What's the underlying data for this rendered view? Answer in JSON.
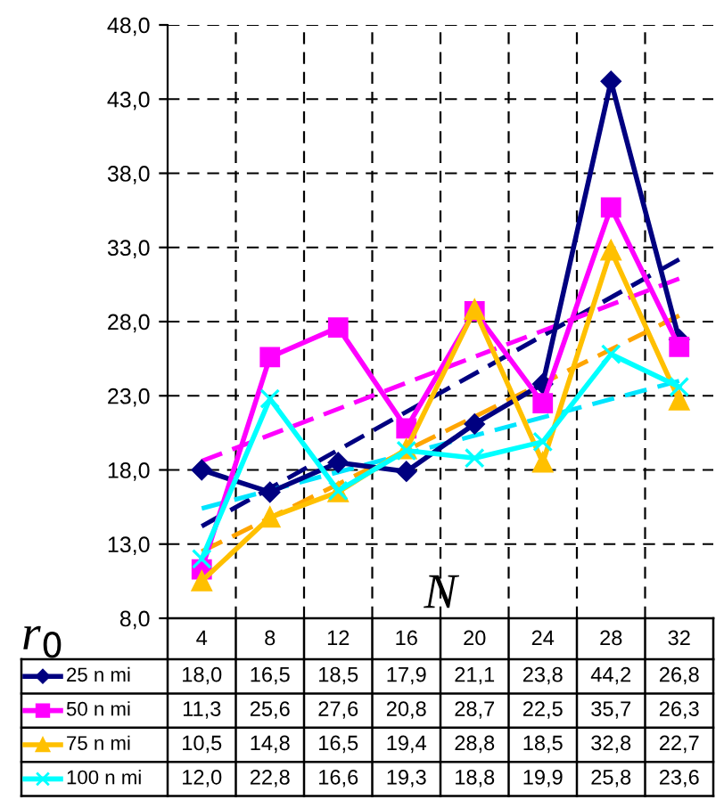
{
  "chart_data": {
    "type": "line",
    "xlabel": "N",
    "ylabel": "r$_{0}$",
    "categories": [
      "4",
      "8",
      "12",
      "16",
      "20",
      "24",
      "28",
      "32"
    ],
    "series": [
      {
        "name": "25 n mi",
        "color": "#000080",
        "marker": "diamond",
        "values": [
          18.0,
          16.5,
          18.5,
          17.9,
          21.1,
          23.8,
          44.2,
          26.8
        ],
        "value_labels": [
          "18,0",
          "16,5",
          "18,5",
          "17,9",
          "21,1",
          "23,8",
          "44,2",
          "26,8"
        ]
      },
      {
        "name": "50 n mi",
        "color": "#ff00ff",
        "marker": "square",
        "values": [
          11.3,
          25.6,
          27.6,
          20.8,
          28.7,
          22.5,
          35.7,
          26.3
        ],
        "value_labels": [
          "11,3",
          "25,6",
          "27,6",
          "20,8",
          "28,7",
          "22,5",
          "35,7",
          "26,3"
        ]
      },
      {
        "name": "75 n mi",
        "color": "#ffc000",
        "marker": "triangle",
        "values": [
          10.5,
          14.8,
          16.5,
          19.4,
          28.8,
          18.5,
          32.8,
          22.7
        ],
        "value_labels": [
          "10,5",
          "14,8",
          "16,5",
          "19,4",
          "28,8",
          "18,5",
          "32,8",
          "22,7"
        ]
      },
      {
        "name": "100 n mi",
        "color": "#00ffff",
        "marker": "cross",
        "values": [
          12.0,
          22.8,
          16.6,
          19.3,
          18.8,
          19.9,
          25.8,
          23.6
        ],
        "value_labels": [
          "12,0",
          "22,8",
          "16,6",
          "19,3",
          "18,8",
          "19,9",
          "25,8",
          "23,6"
        ]
      },
      {
        "type": "line",
        "color": "#000080",
        "line_style": "dashed",
        "x": [
          "4",
          "32"
        ],
        "values": [
          14.2,
          32.2
        ]
      },
      {
        "type": "line",
        "color": "#ff00ff",
        "line_style": "dashed",
        "x": [
          "4",
          "32"
        ],
        "values": [
          18.6,
          30.9
        ]
      },
      {
        "type": "line",
        "color": "#ffa500",
        "line_style": "dashed",
        "x": [
          "4",
          "32"
        ],
        "values": [
          12.5,
          28.4
        ]
      },
      {
        "type": "line",
        "color": "#00e5ff",
        "line_style": "dashed",
        "x": [
          "4",
          "32"
        ],
        "values": [
          15.4,
          24.0
        ]
      }
    ],
    "ylim": [
      8,
      48
    ],
    "yticks": [
      {
        "value": 8,
        "label": "8,0"
      },
      {
        "value": 13,
        "label": "13,0"
      },
      {
        "value": 18,
        "label": "18,0"
      },
      {
        "value": 23,
        "label": "23,0"
      },
      {
        "value": 28,
        "label": "28,0"
      },
      {
        "value": 33,
        "label": "33,0"
      },
      {
        "value": 38,
        "label": "38,0"
      },
      {
        "value": 43,
        "label": "43,0"
      },
      {
        "value": 48,
        "label": "48,0"
      }
    ],
    "grid": true,
    "legend": "bottom"
  }
}
